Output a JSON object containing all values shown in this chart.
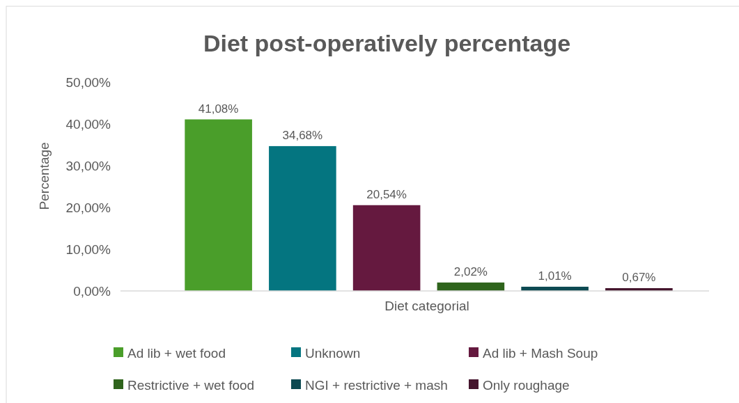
{
  "chart_data": {
    "type": "bar",
    "title": "Diet post-operatively percentage",
    "xlabel": "Diet categorial",
    "ylabel": "Percentage",
    "categories": [
      null
    ],
    "series": [
      {
        "name": "Ad lib + wet food",
        "color": "#4a9e2a",
        "values": [
          41.08
        ],
        "value_labels": [
          "41,08%"
        ]
      },
      {
        "name": "Unknown",
        "color": "#047580",
        "values": [
          34.68
        ],
        "value_labels": [
          "34,68%"
        ]
      },
      {
        "name": "Ad lib + Mash Soup",
        "color": "#65193f",
        "values": [
          20.54
        ],
        "value_labels": [
          "20,54%"
        ]
      },
      {
        "name": "Restrictive + wet food",
        "color": "#2f641c",
        "values": [
          2.02
        ],
        "value_labels": [
          "2,02%"
        ]
      },
      {
        "name": "NGI + restrictive + mash",
        "color": "#0d4a52",
        "values": [
          1.01
        ],
        "value_labels": [
          "1,01%"
        ]
      },
      {
        "name": "Only roughage",
        "color": "#45152d",
        "values": [
          0.67
        ],
        "value_labels": [
          "0,67%"
        ]
      }
    ],
    "ylim": [
      0,
      50
    ],
    "yticks": [
      {
        "value": 0,
        "label": "0,00%"
      },
      {
        "value": 10,
        "label": "10,00%"
      },
      {
        "value": 20,
        "label": "20,00%"
      },
      {
        "value": 30,
        "label": "30,00%"
      },
      {
        "value": 40,
        "label": "40,00%"
      },
      {
        "value": 50,
        "label": "50,00%"
      }
    ],
    "grid": false,
    "legend": "bottom"
  }
}
